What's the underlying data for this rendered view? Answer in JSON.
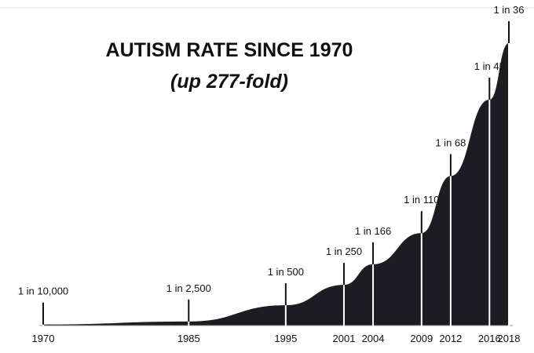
{
  "chart_data": {
    "type": "area",
    "title": "AUTISM RATE SINCE 1970",
    "subtitle": "(up 277-fold)",
    "x": [
      1970,
      1985,
      1995,
      2001,
      2004,
      2009,
      2012,
      2016,
      2018
    ],
    "values": [
      10000,
      2500,
      500,
      250,
      166,
      110,
      68,
      45,
      36
    ],
    "value_labels": [
      "1 in 10,000",
      "1 in 2,500",
      "1 in 500",
      "1 in 250",
      "1 in 166",
      "1 in 110",
      "1 in 68",
      "1 in 45",
      "1 in 36"
    ],
    "xlim": [
      1970,
      2018
    ],
    "color": "#1c1c22"
  }
}
